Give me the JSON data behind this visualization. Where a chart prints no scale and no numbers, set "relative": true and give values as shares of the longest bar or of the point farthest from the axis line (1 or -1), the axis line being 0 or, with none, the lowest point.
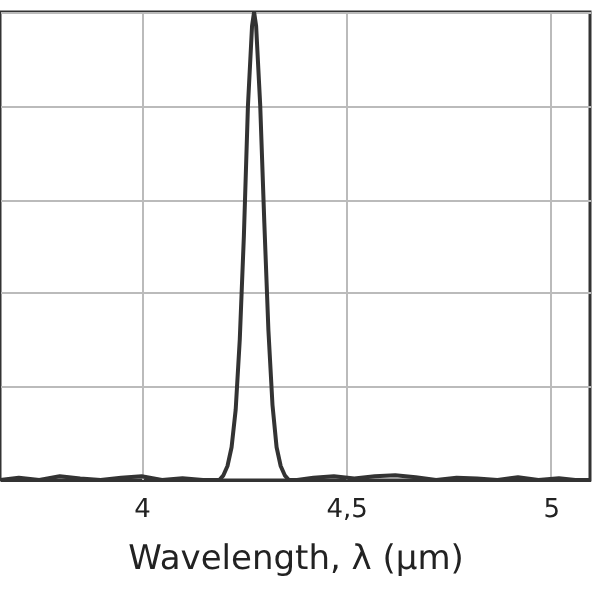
{
  "chart_data": {
    "type": "line",
    "xlabel": "Wavelength, λ (μm)",
    "relative": true,
    "grid": true,
    "line_style": "solid",
    "marker": "none",
    "xlim": [
      3.654,
      5.096
    ],
    "xticks": [
      4,
      {
        "value": 4.5,
        "label": "4,5"
      },
      5
    ],
    "series": [
      {
        "color": "#333333",
        "x": [
          3.654,
          3.7,
          3.75,
          3.8,
          3.85,
          3.9,
          3.95,
          4.0,
          4.05,
          4.1,
          4.15,
          4.18,
          4.19,
          4.2,
          4.21,
          4.22,
          4.23,
          4.24,
          4.25,
          4.26,
          4.27,
          4.275,
          4.28,
          4.29,
          4.3,
          4.31,
          4.32,
          4.33,
          4.34,
          4.35,
          4.36,
          4.38,
          4.42,
          4.47,
          4.52,
          4.57,
          4.62,
          4.67,
          4.72,
          4.77,
          4.82,
          4.87,
          4.92,
          4.97,
          5.02,
          5.06,
          5.096
        ],
        "values": [
          0.0,
          0.005,
          0.0,
          0.008,
          0.003,
          0.0,
          0.005,
          0.008,
          0.0,
          0.004,
          0.0,
          0.0,
          0.0,
          0.01,
          0.03,
          0.07,
          0.15,
          0.3,
          0.52,
          0.8,
          0.97,
          1.0,
          0.97,
          0.8,
          0.55,
          0.32,
          0.16,
          0.07,
          0.03,
          0.01,
          0.0,
          0.0,
          0.005,
          0.008,
          0.003,
          0.008,
          0.01,
          0.006,
          0.0,
          0.005,
          0.003,
          0.0,
          0.006,
          0.0,
          0.004,
          0.0,
          0.0
        ]
      }
    ]
  }
}
